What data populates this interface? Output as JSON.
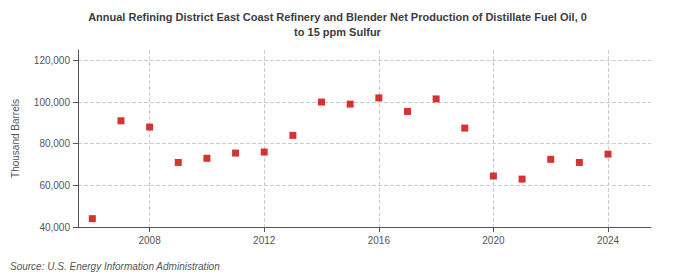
{
  "chart_data": {
    "type": "scatter",
    "title": "Annual Refining District East Coast Refinery and Blender Net Production of Distillate Fuel Oil, 0\nto 15 ppm Sulfur",
    "ylabel": "Thousand Barrels",
    "annotations": [
      "Source: U.S. Energy Information Administration"
    ],
    "x": [
      2006,
      2007,
      2008,
      2009,
      2010,
      2011,
      2012,
      2013,
      2014,
      2015,
      2016,
      2017,
      2018,
      2019,
      2020,
      2021,
      2022,
      2023,
      2024
    ],
    "values": [
      44000,
      91000,
      88000,
      71000,
      73000,
      75500,
      76000,
      84000,
      100000,
      99000,
      102000,
      95500,
      101500,
      87500,
      64500,
      63000,
      72500,
      71000,
      75000
    ],
    "color": "#cc0000",
    "marker": "square",
    "xlim": [
      2005.5,
      2025.5
    ],
    "xticks": [
      2008,
      2012,
      2016,
      2020,
      2024
    ],
    "ylim": [
      40000,
      125000
    ],
    "yticks": [
      {
        "value": 40000,
        "label": "40,000"
      },
      {
        "value": 60000,
        "label": "60,000"
      },
      {
        "value": 80000,
        "label": "80,000"
      },
      {
        "value": 100000,
        "label": "100,000"
      },
      {
        "value": 120000,
        "label": "120,000"
      }
    ],
    "grid": true
  }
}
